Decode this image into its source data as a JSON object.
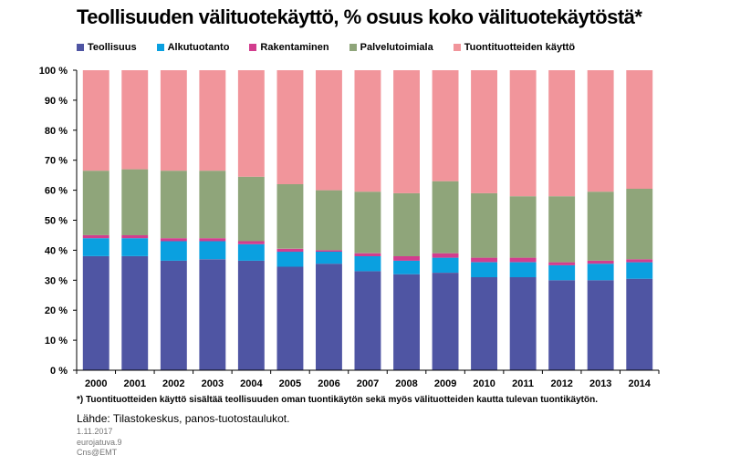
{
  "chart_data": {
    "type": "bar",
    "stacked": true,
    "title": "Teollisuuden välituotekäyttö, % osuus koko välituotekäytöstä*",
    "categories": [
      "2000",
      "2001",
      "2002",
      "2003",
      "2004",
      "2005",
      "2006",
      "2007",
      "2008",
      "2009",
      "2010",
      "2011",
      "2012",
      "2013",
      "2014"
    ],
    "ylim": [
      0,
      100
    ],
    "yticks": [
      "0 %",
      "10 %",
      "20 %",
      "30 %",
      "40 %",
      "50 %",
      "60 %",
      "70 %",
      "80 %",
      "90 %",
      "100 %"
    ],
    "legend_position": "top",
    "grid": false,
    "series": [
      {
        "name": "Teollisuus",
        "color": "#4f55a3",
        "values": [
          38,
          38,
          36.5,
          37,
          36.5,
          34.5,
          35.5,
          33,
          32,
          32.5,
          31,
          31,
          30,
          30,
          30.5
        ]
      },
      {
        "name": "Alkutuotanto",
        "color": "#0aa0e0",
        "values": [
          6,
          6,
          6.5,
          6,
          5.5,
          5,
          4,
          5,
          4.5,
          5,
          5,
          5,
          5,
          5.5,
          5.5
        ]
      },
      {
        "name": "Rakentaminen",
        "color": "#d23d8e",
        "values": [
          1,
          1,
          1,
          1,
          1,
          1,
          0.5,
          1,
          1.5,
          1.5,
          1.5,
          1.5,
          1,
          1,
          1
        ]
      },
      {
        "name": "Palvelutoimiala",
        "color": "#8fa57a",
        "values": [
          21.5,
          22,
          22.5,
          22.5,
          21.5,
          21.5,
          20,
          20.5,
          21,
          24,
          21.5,
          20.5,
          22,
          23,
          23.5
        ]
      },
      {
        "name": "Tuontituotteiden käyttö",
        "color": "#f1959b",
        "values": [
          33.5,
          33,
          33.5,
          33.5,
          35.5,
          38,
          40,
          40.5,
          41,
          37,
          41,
          42,
          42,
          40.5,
          39.5
        ]
      }
    ]
  },
  "footnote": "*) Tuontituotteiden käyttö sisältää teollisuuden oman tuontikäytön sekä myös välituotteiden kautta tulevan tuontikäytön.",
  "source": "Lähde: Tilastokeskus, panos-tuotostaulukot.",
  "date": "1.11.2017",
  "file_id": "eurojatuva.9",
  "author": "Cns@EMT"
}
